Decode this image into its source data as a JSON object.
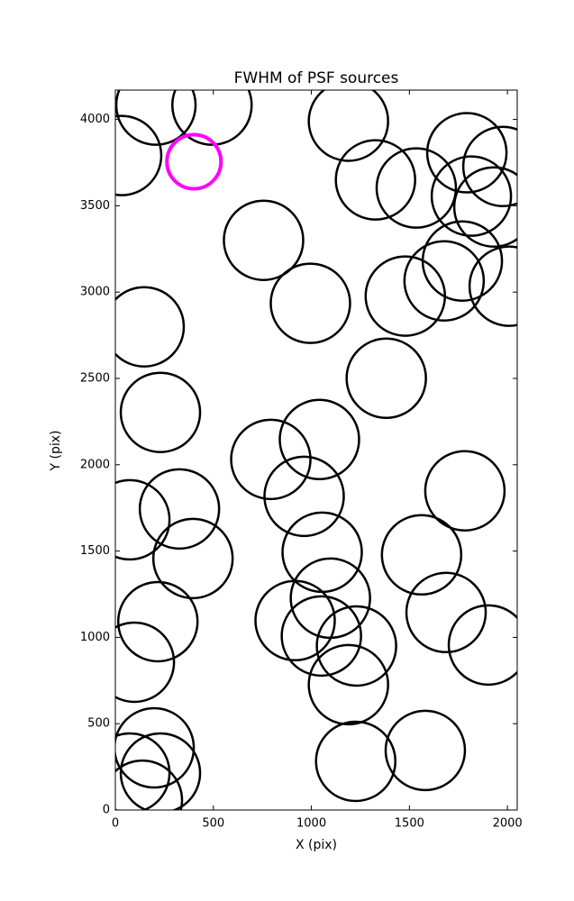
{
  "chart_data": {
    "type": "scatter",
    "title": "FWHM of PSF sources",
    "x_label": "X (pix)",
    "y_label": "Y (pix)",
    "xlim": [
      0,
      2050
    ],
    "ylim": [
      0,
      4170
    ],
    "xticks": [
      0,
      500,
      1000,
      1500,
      2000
    ],
    "yticks": [
      0,
      500,
      1000,
      1500,
      2000,
      2500,
      3000,
      3500,
      4000
    ],
    "series": [
      {
        "color": "#000000",
        "marker": "open-circle",
        "marker_size": 44,
        "x": [
          207,
          493,
          32,
          1189,
          1327,
          1535,
          1793,
          1977,
          1816,
          1931,
          1770,
          1677,
          1479,
          2009,
          756,
          995,
          147,
          1382,
          230,
          1041,
          793,
          963,
          74,
          327,
          396,
          1055,
          1783,
          1562,
          1097,
          917,
          1051,
          1230,
          1687,
          1903,
          217,
          97,
          1189,
          1226,
          1581,
          198,
          230,
          74,
          138
        ],
        "values": [
          4083,
          4083,
          3791,
          3990,
          3650,
          3603,
          3807,
          3728,
          3556,
          3493,
          3180,
          3065,
          2977,
          3034,
          3300,
          2935,
          2799,
          2501,
          2303,
          2146,
          2031,
          1817,
          1681,
          1744,
          1457,
          1493,
          1849,
          1478,
          1227,
          1097,
          1008,
          950,
          1144,
          956,
          1091,
          856,
          726,
          282,
          345,
          360,
          214,
          214,
          57
        ]
      },
      {
        "color": "#ff00ff",
        "marker": "open-circle",
        "marker_size": 30,
        "x": [
          401
        ],
        "values": [
          3755
        ]
      }
    ]
  }
}
